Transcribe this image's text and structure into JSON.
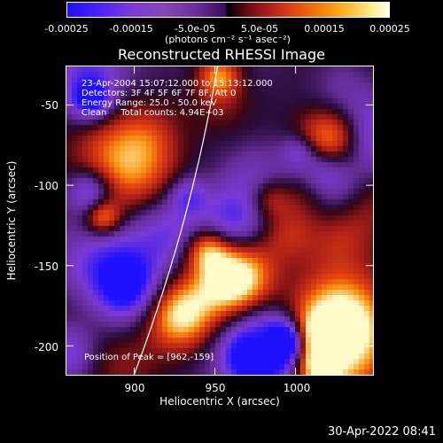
{
  "colorbar": {
    "ticks": [
      "-0.00025",
      "-0.00015",
      "-5.0e-05",
      "5.0e-05",
      "0.00015",
      "0.00025"
    ],
    "unit_label": "(photons cm⁻² s⁻¹ asec⁻²)",
    "range": [
      -0.00025,
      0.00025
    ]
  },
  "chart_data": {
    "type": "heatmap",
    "title": "Reconstructed RHESSI Image",
    "xlabel": "Heliocentric X (arcsec)",
    "ylabel": "Heliocentric Y (arcsec)",
    "xlim": [
      858,
      1048
    ],
    "ylim": [
      -218,
      -26
    ],
    "x_ticks": [
      "900",
      "950",
      "1000"
    ],
    "y_ticks": [
      "-50",
      "-100",
      "-150",
      "-200"
    ],
    "info_lines": [
      "23-Apr-2004 15:07:12.000 to 15:13:12.000",
      "Detectors: 3F 4F 5F 6F 7F 8F, Att 0",
      "Energy Range: 25.0 - 50.0 keV",
      "Clean     Total counts: 4.94E+03"
    ],
    "peak_label": "Position of Peak = [962,-159]",
    "peak": [
      962,
      -159
    ],
    "limb_line": "white solar-limb arc"
  },
  "footer": {
    "timestamp": "30-Apr-2022 08:41"
  }
}
